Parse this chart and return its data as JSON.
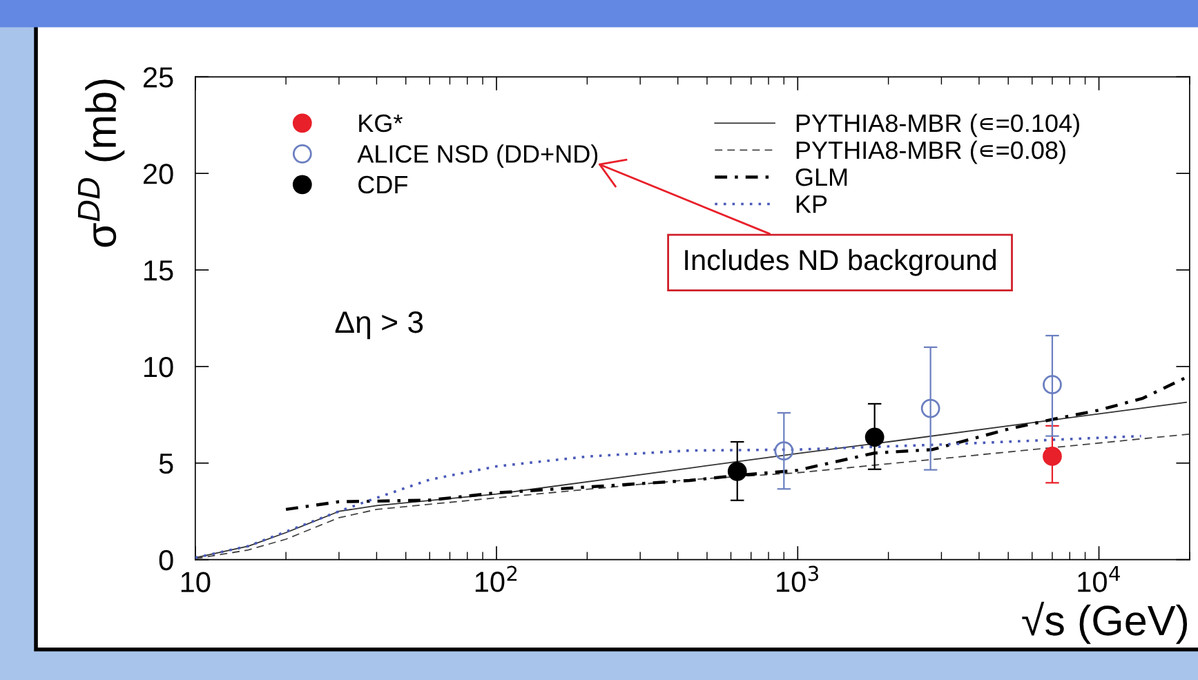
{
  "chart_data": {
    "type": "line",
    "xlabel": "√s (GeV)",
    "ylabel": "σ$^{DD}$ (mb)",
    "log": "x",
    "xlim": [
      10,
      20000
    ],
    "ylim": [
      0,
      25
    ],
    "xticks": [
      10,
      {
        "value": 100,
        "label": "10$^{2}$"
      },
      {
        "value": 1000,
        "label": "10$^{3}$"
      },
      {
        "value": 10000,
        "label": "10$^{4}$"
      }
    ],
    "yticks": [
      0,
      5,
      10,
      15,
      20,
      25
    ],
    "grid": false,
    "legend": "top",
    "series": [
      {
        "name": "KG*",
        "type": "scatter",
        "marker": "circle",
        "color": "#e8202a",
        "x": [
          7000
        ],
        "values": [
          5.35
        ],
        "errors": [
          [
            3.98,
            6.93
          ]
        ]
      },
      {
        "name": "ALICE NSD (DD+ND)",
        "type": "scatter",
        "marker": "open circle",
        "color": "#6b7fc0",
        "x": [
          900,
          2760,
          7000
        ],
        "values": [
          5.63,
          7.83,
          9.06
        ],
        "errors": [
          [
            3.66,
            7.6
          ],
          [
            4.65,
            11.0
          ],
          [
            6.4,
            11.6
          ]
        ]
      },
      {
        "name": "CDF",
        "type": "scatter",
        "marker": "circle",
        "color": "#000000",
        "x": [
          630,
          1800
        ],
        "values": [
          4.57,
          6.34
        ],
        "errors": [
          [
            3.07,
            6.1
          ],
          [
            4.68,
            8.07
          ]
        ]
      },
      {
        "name": "PYTHIA8-MBR (∊=0.104)",
        "type": "line",
        "line_style": "solid",
        "color": "#333333",
        "x": [
          10,
          15,
          20,
          30,
          40,
          100,
          437,
          1000,
          2000,
          19500
        ],
        "values": [
          0.1,
          0.7,
          1.4,
          2.5,
          2.8,
          3.4,
          4.74,
          5.5,
          6.1,
          8.15
        ]
      },
      {
        "name": "PYTHIA8-MBR (∊=0.08)",
        "type": "line",
        "line_style": "dashed",
        "color": "#444444",
        "x": [
          10,
          15,
          20,
          30,
          40,
          100,
          437,
          1000,
          20000
        ],
        "values": [
          0.05,
          0.5,
          1.06,
          2.17,
          2.6,
          3.2,
          4.14,
          4.5,
          6.5
        ]
      },
      {
        "name": "GLM",
        "type": "line",
        "line_style": "dashdot",
        "color": "#000000",
        "x": [
          20,
          30,
          40,
          60,
          100,
          437,
          630,
          1000,
          1800,
          2800,
          5000,
          7000,
          10000,
          14000,
          20000
        ],
        "values": [
          2.6,
          3.0,
          3.03,
          3.08,
          3.46,
          4.1,
          4.36,
          4.63,
          5.52,
          5.7,
          6.76,
          7.26,
          7.74,
          8.36,
          9.52
        ]
      },
      {
        "name": "KP",
        "type": "line",
        "line_style": "dotted",
        "color": "#4a5ab8",
        "x": [
          10,
          15,
          20,
          30,
          40,
          60,
          100,
          200,
          437,
          1000,
          3000,
          13800
        ],
        "values": [
          0.1,
          0.7,
          1.45,
          2.5,
          3.2,
          4.14,
          4.83,
          5.34,
          5.65,
          5.7,
          5.96,
          6.4
        ]
      }
    ],
    "annotations": [
      "Δη > 3",
      "Includes ND background"
    ]
  }
}
